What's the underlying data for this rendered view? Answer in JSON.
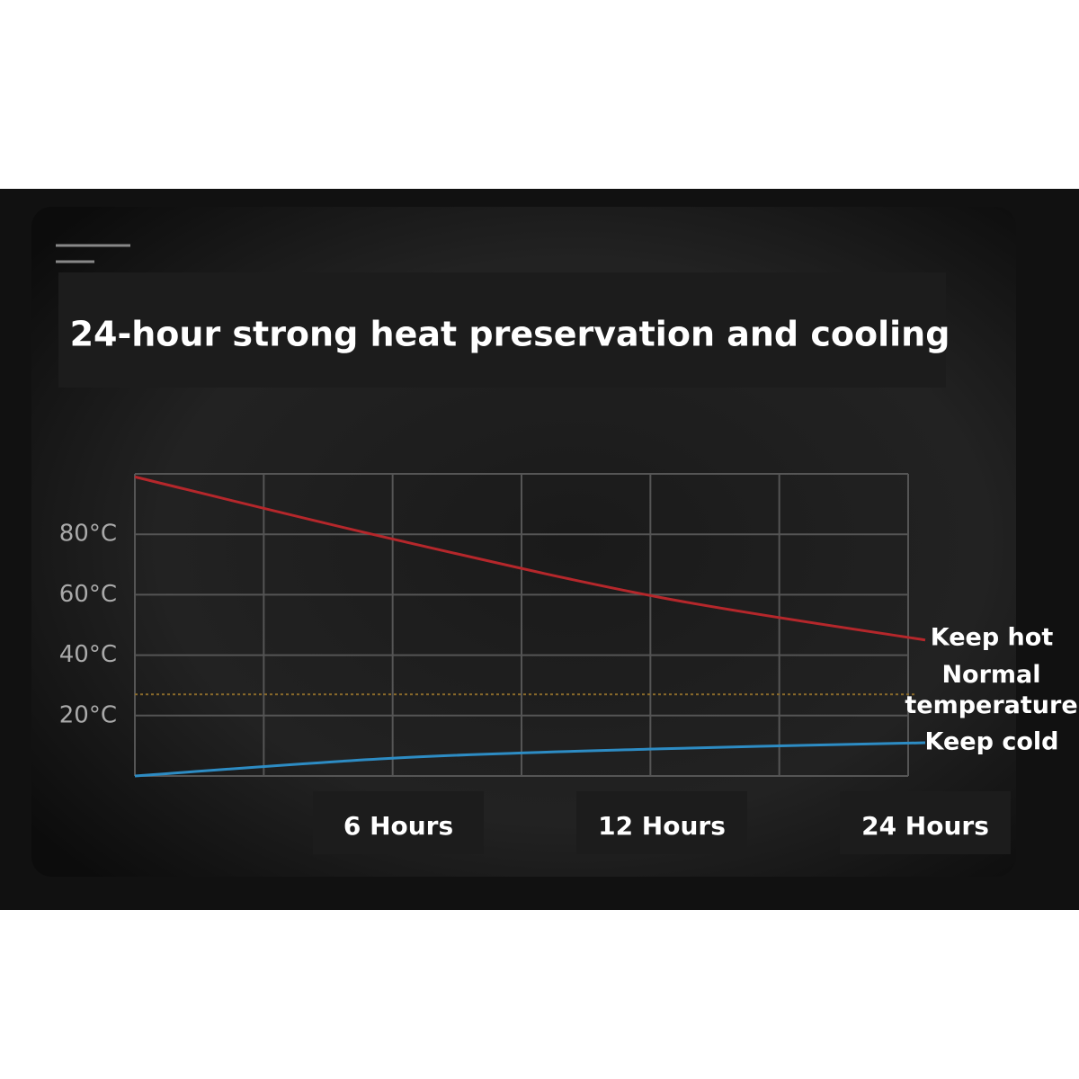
{
  "chart_data": {
    "type": "line",
    "title": "24-hour strong heat preservation and cooling",
    "categories": [
      null,
      "6 Hours",
      "12 Hours",
      "24 Hours"
    ],
    "series": [
      {
        "name": "Keep hot",
        "color": "#b5272b",
        "values": [
          99,
          78,
          59,
          45
        ]
      },
      {
        "name": "Keep cold",
        "color": "#2d8cc4",
        "values": [
          0,
          6,
          9,
          11
        ]
      }
    ],
    "reference_line": {
      "label": "Normal temperature",
      "value": 27,
      "color": "#8a6a2a"
    },
    "ylim": [
      0,
      100
    ],
    "yticks": [
      {
        "value": 20,
        "label": "20°C"
      },
      {
        "value": 40,
        "label": "40°C"
      },
      {
        "value": 60,
        "label": "60°C"
      },
      {
        "value": 80,
        "label": "80°C"
      }
    ],
    "grid": true
  }
}
